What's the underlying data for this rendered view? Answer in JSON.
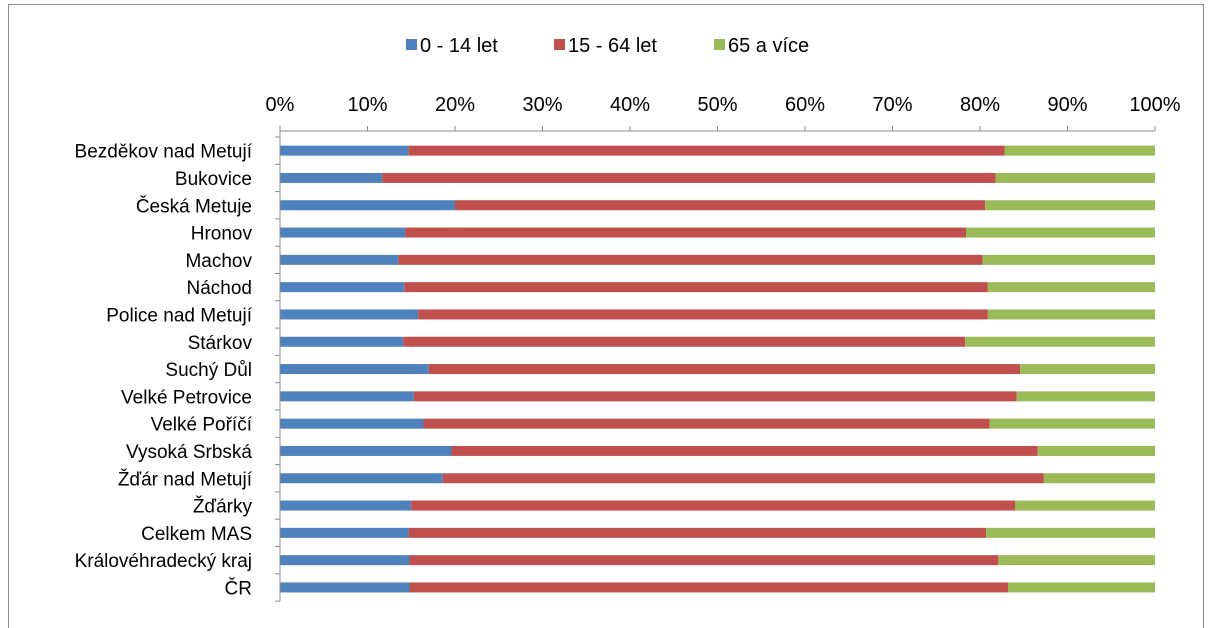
{
  "chart_data": {
    "type": "bar",
    "orientation": "horizontal",
    "stacked": "percent",
    "categories": [
      "Bezděkov nad Metují",
      "Bukovice",
      "Česká Metuje",
      "Hronov",
      "Machov",
      "Náchod",
      "Police nad Metují",
      "Stárkov",
      "Suchý Důl",
      "Velké Petrovice",
      "Velké Poříčí",
      "Vysoká Srbská",
      "Žďár nad Metují",
      "Žďárky",
      "Celkem MAS",
      "Královéhradecký kraj",
      "ČR"
    ],
    "series": [
      {
        "name": "0 - 14 let",
        "color": "#4F81BD",
        "values": [
          14.7,
          11.7,
          20.0,
          14.3,
          13.5,
          14.2,
          15.8,
          14.1,
          17.0,
          15.3,
          16.4,
          19.6,
          18.6,
          15.0,
          14.7,
          14.8,
          14.8
        ]
      },
      {
        "name": "15 - 64 let",
        "color": "#C0504D",
        "values": [
          68.1,
          70.1,
          60.6,
          64.1,
          66.8,
          66.7,
          65.1,
          64.2,
          67.6,
          68.9,
          64.7,
          67.0,
          68.7,
          69.0,
          66.0,
          67.3,
          68.4
        ]
      },
      {
        "name": "65 a více",
        "color": "#9BBB59",
        "values": [
          17.2,
          18.2,
          19.4,
          21.6,
          19.7,
          19.1,
          19.1,
          21.7,
          15.4,
          15.8,
          18.9,
          13.4,
          12.7,
          16.0,
          19.3,
          17.9,
          16.8
        ]
      }
    ],
    "x_ticks": [
      "0%",
      "10%",
      "20%",
      "30%",
      "40%",
      "50%",
      "60%",
      "70%",
      "80%",
      "90%",
      "100%"
    ],
    "xlim": [
      0,
      100
    ],
    "x_axis_position": "top",
    "legend_position": "top",
    "grid": false
  }
}
